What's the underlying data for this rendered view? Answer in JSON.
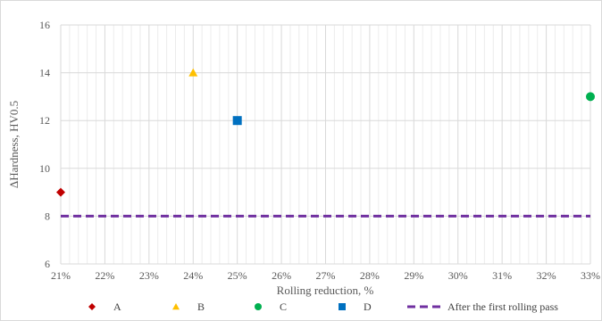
{
  "chart_data": {
    "type": "scatter",
    "xlabel": "Rolling reduction, %",
    "ylabel": "ΔHardness, HV0.5",
    "xlim": [
      21,
      33
    ],
    "ylim": [
      6,
      16
    ],
    "x_ticks": [
      21,
      22,
      23,
      24,
      25,
      26,
      27,
      28,
      29,
      30,
      31,
      32,
      33
    ],
    "x_tick_labels": [
      "21%",
      "22%",
      "23%",
      "24%",
      "25%",
      "26%",
      "27%",
      "28%",
      "29%",
      "30%",
      "31%",
      "32%",
      "33%"
    ],
    "y_ticks": [
      6,
      8,
      10,
      12,
      14,
      16
    ],
    "y_tick_labels": [
      "6",
      "8",
      "10",
      "12",
      "14",
      "16"
    ],
    "grid": true,
    "legend_position": "bottom",
    "series": [
      {
        "name": "A",
        "marker": "diamond",
        "color": "#c00000",
        "points": [
          {
            "x": 21,
            "y": 9
          }
        ]
      },
      {
        "name": "B",
        "marker": "triangle",
        "color": "#ffc000",
        "points": [
          {
            "x": 24,
            "y": 14
          }
        ]
      },
      {
        "name": "C",
        "marker": "circle",
        "color": "#00b050",
        "points": [
          {
            "x": 33,
            "y": 13
          }
        ]
      },
      {
        "name": "D",
        "marker": "square",
        "color": "#0070c0",
        "points": [
          {
            "x": 25,
            "y": 12
          }
        ]
      }
    ],
    "reference_line": {
      "name": "After the first rolling pass",
      "y": 8,
      "style": "dashed",
      "color": "#7030a0"
    }
  }
}
